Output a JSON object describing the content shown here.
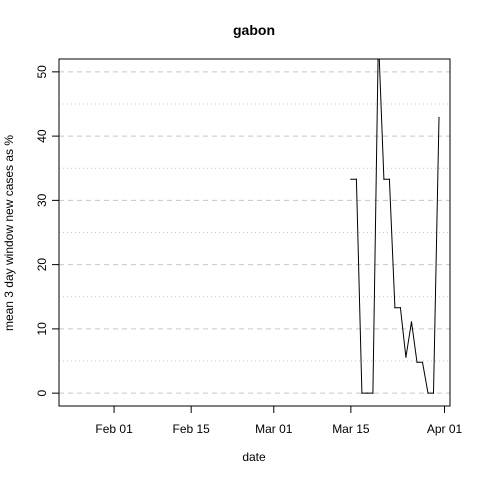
{
  "chart_data": {
    "type": "line",
    "title": "gabon",
    "xlabel": "date",
    "ylabel": "mean  3  day window new cases as %",
    "x_ticks": [
      "Feb 01",
      "Feb 15",
      "Mar 01",
      "Mar 15",
      "Apr 01"
    ],
    "y_ticks": [
      "0",
      "10",
      "20",
      "30",
      "40",
      "50"
    ],
    "xlim": [
      "2020-01-22",
      "2020-04-02"
    ],
    "ylim": [
      -2,
      52
    ],
    "grid": {
      "major": "dashed",
      "minor": "dotted",
      "minor_step": 5
    },
    "series": [
      {
        "color": "#000000",
        "points": [
          {
            "x": "2020-03-15",
            "y": 33.3
          },
          {
            "x": "2020-03-16",
            "y": 33.3
          },
          {
            "x": "2020-03-17",
            "y": 0
          },
          {
            "x": "2020-03-18",
            "y": 0
          },
          {
            "x": "2020-03-19",
            "y": 0
          },
          {
            "x": "2020-03-20",
            "y": 55.6
          },
          {
            "x": "2020-03-21",
            "y": 33.3
          },
          {
            "x": "2020-03-22",
            "y": 33.3
          },
          {
            "x": "2020-03-23",
            "y": 13.3
          },
          {
            "x": "2020-03-24",
            "y": 13.3
          },
          {
            "x": "2020-03-25",
            "y": 5.6
          },
          {
            "x": "2020-03-26",
            "y": 11.1
          },
          {
            "x": "2020-03-27",
            "y": 4.8
          },
          {
            "x": "2020-03-28",
            "y": 4.8
          },
          {
            "x": "2020-03-29",
            "y": 0
          },
          {
            "x": "2020-03-30",
            "y": 0
          },
          {
            "x": "2020-03-31",
            "y": 42.9
          }
        ]
      }
    ]
  }
}
